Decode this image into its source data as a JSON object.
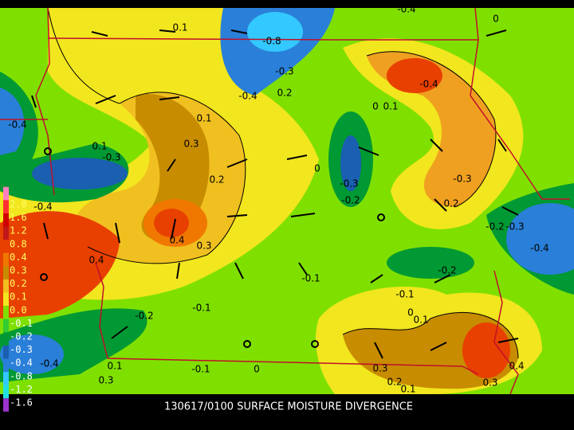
{
  "map": {
    "caption": "130617/0100 SURFACE MOISTURE DIVERGENCE",
    "legend_labels": [
      "2.0",
      "1.6",
      "1.2",
      "0.8",
      "0.4",
      "0.3",
      "0.2",
      "0.1",
      "0.0",
      "-0.1",
      "-0.2",
      "-0.3",
      "-0.4",
      "-0.8",
      "-1.2",
      "-1.6"
    ],
    "contour_labels": [
      "0.1",
      "-0.8",
      "-0.3",
      "-0.4",
      "0.2",
      "-0.4",
      "0",
      "0.1",
      "-0.4",
      "0.1",
      "0.1",
      "-0.3",
      "0.3",
      "0",
      "-0.3",
      "-0.2",
      "0.2",
      "-0.3",
      "0.2",
      "-0.4",
      "0.4",
      "0.3",
      "-0.2",
      "-0.3",
      "-0.4",
      "0.4",
      "-0.2",
      "-0.1",
      "-0.1",
      "-0.1",
      "-0.2",
      "0",
      "0.1",
      "-0.4",
      "-0.1",
      "0",
      "0.3",
      "0.4",
      "0.2",
      "0.3",
      "0.1",
      "0.1",
      "0.3",
      "-0.4",
      "0"
    ]
  }
}
